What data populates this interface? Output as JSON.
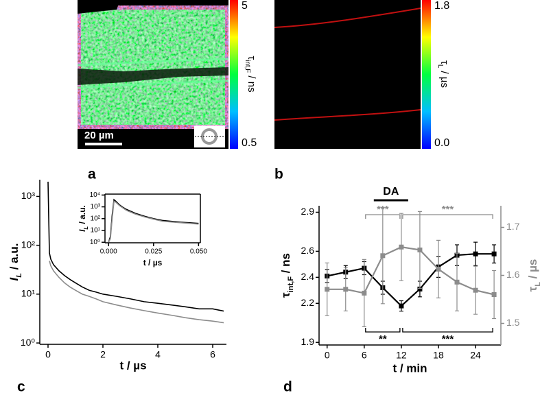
{
  "figure": {
    "panel_labels": [
      "a",
      "b",
      "c",
      "d"
    ],
    "images": [
      {
        "clim": [
          0.5,
          5
        ],
        "cticks": [
          5,
          0.5
        ],
        "colorbar_label": {
          "symbol": "τ",
          "subscript": "int,F",
          "unit": " / ns"
        },
        "scale_bar": "20 µm"
      },
      {
        "clim": [
          0,
          1.8
        ],
        "cticks": [
          1.8,
          {
            "value": 0,
            "label": "0.0"
          }
        ],
        "colorbar_label": {
          "symbol": "τ",
          "subscript": "L",
          "unit": " / µs"
        }
      }
    ]
  },
  "chart_data": [
    {
      "type": "line",
      "log_y": true,
      "x": [
        0,
        0.05,
        0.1,
        0.2,
        0.4,
        0.6,
        0.8,
        1,
        1.25,
        1.5,
        1.75,
        2,
        2.5,
        3,
        3.5,
        4,
        4.5,
        5,
        5.5,
        6,
        6.4
      ],
      "xlim": [
        -0.3,
        6.5
      ],
      "xticks": [
        0,
        2,
        4,
        6
      ],
      "ylim": [
        0.94,
        2200
      ],
      "yticks": [
        {
          "value": 1,
          "label": "10⁰"
        },
        {
          "value": 10,
          "label": "10¹"
        },
        {
          "value": 100,
          "label": "10²"
        },
        {
          "value": 1000,
          "label": "10³"
        }
      ],
      "xlabel": "t / µs",
      "ylabel": {
        "symbol": "I",
        "subscript": "L",
        "unit": " / a.u.",
        "italic": true
      },
      "series": [
        {
          "color": "#000000",
          "values": [
            2000,
            70,
            52,
            40,
            30,
            24,
            20,
            17,
            14,
            12,
            11,
            10,
            9,
            8,
            7,
            6.5,
            6,
            5.5,
            5,
            5,
            4.5
          ]
        },
        {
          "color": "#8c8c8c",
          "values": [
            null,
            48,
            38,
            30,
            22,
            17,
            14,
            12,
            10,
            9,
            8,
            7,
            6,
            5.2,
            4.6,
            4.1,
            3.7,
            3.3,
            3,
            2.8,
            2.6
          ]
        }
      ]
    },
    {
      "type": "line",
      "log_y": true,
      "x": [
        0,
        0.001,
        0.002,
        0.003,
        0.004,
        0.006,
        0.008,
        0.01,
        0.015,
        0.02,
        0.025,
        0.03,
        0.04,
        0.05
      ],
      "xlim": [
        -0.002,
        0.051
      ],
      "xticks": [
        {
          "value": 0,
          "label": "0.000"
        },
        {
          "value": 0.025,
          "label": "0.025"
        },
        {
          "value": 0.05,
          "label": "0.050"
        }
      ],
      "ylim": [
        0.9,
        12000
      ],
      "yticks": [
        {
          "value": 1,
          "label": "10⁰"
        },
        {
          "value": 10,
          "label": "10¹"
        },
        {
          "value": 100,
          "label": "10²"
        },
        {
          "value": 1000,
          "label": "10³"
        },
        {
          "value": 10000,
          "label": "10⁴"
        }
      ],
      "xlabel": "t / µs",
      "ylabel": {
        "symbol": "I",
        "subscript": "L",
        "unit": " / a.u.",
        "italic": true
      },
      "series": [
        {
          "color": "#000000",
          "values": [
            1,
            3,
            200,
            4000,
            3000,
            1500,
            900,
            600,
            280,
            160,
            100,
            70,
            50,
            40
          ]
        },
        {
          "color": "#8c8c8c",
          "values": [
            1,
            2,
            100,
            3000,
            2500,
            1300,
            800,
            500,
            240,
            140,
            90,
            60,
            45,
            35
          ]
        }
      ]
    },
    {
      "type": "line",
      "markers": true,
      "x": [
        0,
        3,
        6,
        9,
        12,
        15,
        18,
        21,
        24,
        27
      ],
      "xlim": [
        -1.3,
        28.1
      ],
      "xticks": [
        0,
        6,
        12,
        18,
        24
      ],
      "ylim": [
        1.88,
        2.95
      ],
      "yticks": [
        1.9,
        2.2,
        2.4,
        2.6,
        2.9
      ],
      "y2lim": [
        1.455,
        1.745
      ],
      "y2ticks": [
        1.5,
        1.6,
        1.7
      ],
      "xlabel": "t / min",
      "ylabel": {
        "symbol": "τ",
        "subscript": "int,F",
        "unit": " / ns"
      },
      "y2label": {
        "symbol": "τ",
        "subscript": "L",
        "unit": " / µs"
      },
      "annotations": [
        "DA",
        "***",
        "***",
        "**",
        "***"
      ],
      "series": [
        {
          "color": "#000000",
          "values": [
            2.41,
            2.44,
            2.47,
            2.32,
            2.18,
            2.31,
            2.48,
            2.57,
            2.58,
            2.58
          ],
          "errors": [
            0.05,
            0.05,
            0.05,
            0.05,
            0.04,
            0.06,
            0.08,
            0.08,
            0.09,
            0.07
          ]
        },
        {
          "color": "#8c8c8c",
          "axis": "y2",
          "values": [
            1.571,
            1.571,
            1.563,
            1.641,
            1.659,
            1.653,
            1.613,
            1.586,
            1.569,
            1.56
          ],
          "errors": [
            0.055,
            0.045,
            0.07,
            0.1,
            0.07,
            0.08,
            0.06,
            0.06,
            0.05,
            0.05
          ]
        }
      ]
    }
  ]
}
